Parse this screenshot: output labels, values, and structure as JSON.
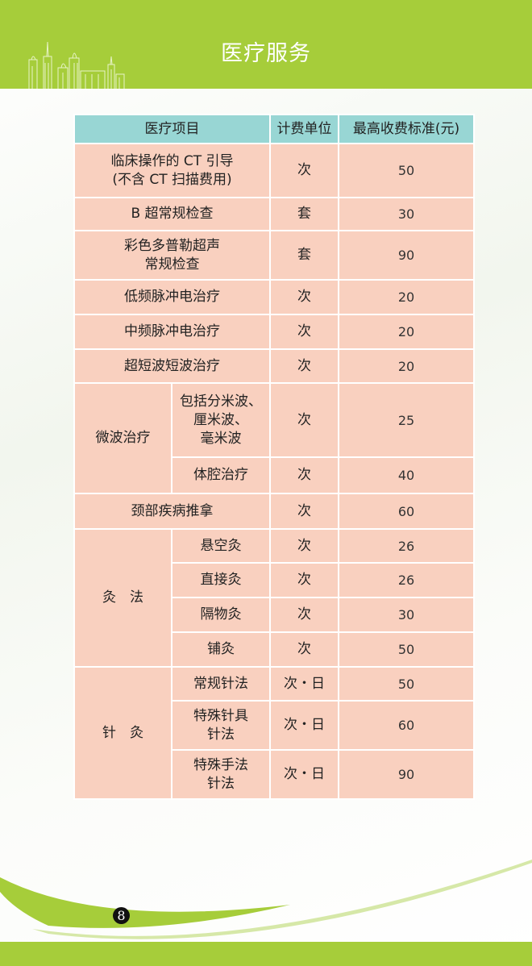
{
  "header": {
    "title": "医疗服务"
  },
  "table": {
    "headers": [
      "医疗项目",
      "计费单位",
      "最高收费标准(元)"
    ],
    "rows": [
      {
        "item": "临床操作的 CT 引导",
        "item2": "(不含 CT 扫描费用)",
        "unit": "次",
        "price": "50"
      },
      {
        "item": "B 超常规检查",
        "unit": "套",
        "price": "30"
      },
      {
        "item": "彩色多普勒超声",
        "item2": "常规检查",
        "unit": "套",
        "price": "90"
      },
      {
        "item": "低频脉冲电治疗",
        "unit": "次",
        "price": "20"
      },
      {
        "item": "中频脉冲电治疗",
        "unit": "次",
        "price": "20"
      },
      {
        "item": "超短波短波治疗",
        "unit": "次",
        "price": "20"
      },
      {
        "group": "微波治疗",
        "item": "包括分米波、",
        "item2": "厘米波、",
        "item3": "毫米波",
        "unit": "次",
        "price": "25"
      },
      {
        "item": "体腔治疗",
        "unit": "次",
        "price": "40"
      },
      {
        "item": "颈部疾病推拿",
        "unit": "次",
        "price": "60"
      },
      {
        "group": "灸　法",
        "item": "悬空灸",
        "unit": "次",
        "price": "26"
      },
      {
        "item": "直接灸",
        "unit": "次",
        "price": "26"
      },
      {
        "item": "隔物灸",
        "unit": "次",
        "price": "30"
      },
      {
        "item": "铺灸",
        "unit": "次",
        "price": "50"
      },
      {
        "group": "针　灸",
        "item": "常规针法",
        "unit": "次・日",
        "price": "50"
      },
      {
        "item": "特殊针具",
        "item2": "针法",
        "unit": "次・日",
        "price": "60"
      },
      {
        "item": "特殊手法",
        "item2": "针法",
        "unit": "次・日",
        "price": "90"
      }
    ]
  },
  "footer": {
    "page": "8"
  },
  "colors": {
    "green": "#a6cd3a",
    "header_cell": "#98d6d4",
    "body_cell": "#f9d0bf"
  }
}
